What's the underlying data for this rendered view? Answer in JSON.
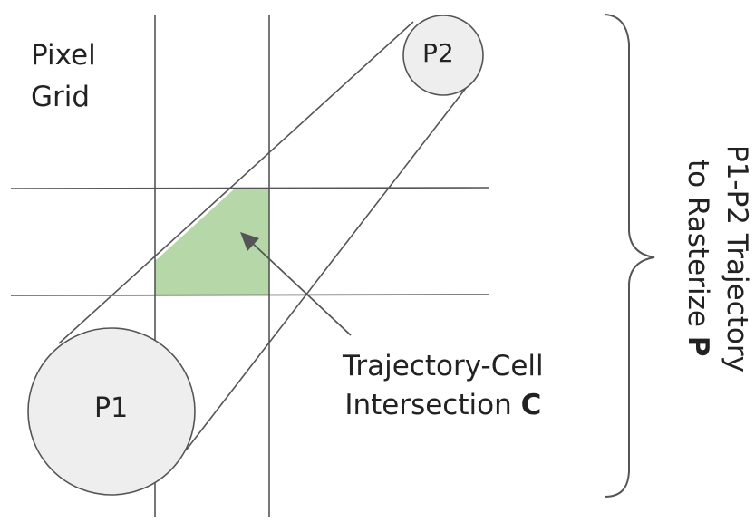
{
  "labels": {
    "grid_line1": "Pixel",
    "grid_line2": "Grid",
    "p1": "P1",
    "p2": "P2",
    "intersection_line1": "Trajectory-Cell",
    "intersection_line2_text": "Intersection ",
    "intersection_line2_bold": "C",
    "trajectory_line1": "P1-P2 Trajectory",
    "trajectory_line2_text": "to Rasterize ",
    "trajectory_line2_bold": "P"
  },
  "colors": {
    "line": "#555555",
    "circle_fill": "#eeeeee",
    "cell_fill": "#b6d7a8",
    "text": "#222222"
  }
}
